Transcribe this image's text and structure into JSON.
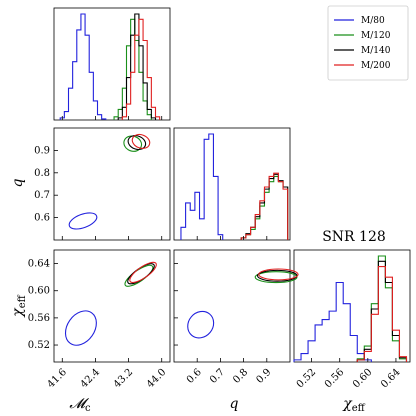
{
  "chart_data": {
    "type": "corner",
    "title": "SNR 128",
    "legend": {
      "placement": "top-right",
      "entries": [
        {
          "label": "M/80",
          "color": "#2222dd"
        },
        {
          "label": "M/120",
          "color": "#1a8f1a"
        },
        {
          "label": "M/140",
          "color": "#000000"
        },
        {
          "label": "M/200",
          "color": "#e02020"
        }
      ]
    },
    "parameters": [
      {
        "label": "𝓜",
        "subscript": "c",
        "range": [
          41.4,
          44.2
        ],
        "ticks": [
          41.6,
          42.4,
          43.2,
          44.0
        ],
        "tick_labels": [
          "41.6",
          "42.4",
          "43.2",
          "44.0"
        ]
      },
      {
        "label": "q",
        "subscript": "",
        "range": [
          0.5,
          1.0
        ],
        "ticks": [
          0.6,
          0.7,
          0.8,
          0.9
        ],
        "tick_labels": [
          "0.6",
          "0.7",
          "0.8",
          "0.9"
        ]
      },
      {
        "label": "χ",
        "subscript": "eff",
        "range": [
          0.495,
          0.66
        ],
        "ticks": [
          0.52,
          0.56,
          0.6,
          0.64
        ],
        "tick_labels": [
          "0.52",
          "0.56",
          "0.60",
          "0.64"
        ]
      }
    ],
    "marginals": [
      {
        "param": 0,
        "series": [
          {
            "name": "M/80",
            "bins": [
              [
                41.6,
                0.02
              ],
              [
                41.7,
                0.08
              ],
              [
                41.8,
                0.3
              ],
              [
                41.9,
                0.55
              ],
              [
                42.0,
                0.85
              ],
              [
                42.1,
                1.0
              ],
              [
                42.2,
                0.8
              ],
              [
                42.3,
                0.45
              ],
              [
                42.4,
                0.18
              ],
              [
                42.5,
                0.05
              ],
              [
                42.6,
                0.01
              ]
            ]
          },
          {
            "name": "M/120",
            "bins": [
              [
                42.9,
                0.03
              ],
              [
                43.0,
                0.1
              ],
              [
                43.1,
                0.3
              ],
              [
                43.2,
                0.7
              ],
              [
                43.3,
                0.95
              ],
              [
                43.4,
                0.75
              ],
              [
                43.5,
                0.45
              ],
              [
                43.6,
                0.18
              ],
              [
                43.7,
                0.05
              ]
            ]
          },
          {
            "name": "M/140",
            "bins": [
              [
                43.0,
                0.02
              ],
              [
                43.1,
                0.12
              ],
              [
                43.2,
                0.4
              ],
              [
                43.3,
                0.8
              ],
              [
                43.4,
                1.0
              ],
              [
                43.5,
                0.7
              ],
              [
                43.6,
                0.35
              ],
              [
                43.7,
                0.1
              ],
              [
                43.8,
                0.02
              ]
            ]
          },
          {
            "name": "M/200",
            "bins": [
              [
                43.1,
                0.03
              ],
              [
                43.2,
                0.15
              ],
              [
                43.3,
                0.45
              ],
              [
                43.4,
                0.8
              ],
              [
                43.5,
                0.95
              ],
              [
                43.6,
                0.75
              ],
              [
                43.7,
                0.4
              ],
              [
                43.8,
                0.12
              ],
              [
                43.9,
                0.03
              ]
            ]
          }
        ]
      },
      {
        "param": 1,
        "series": [
          {
            "name": "M/80",
            "bins": [
              [
                0.54,
                0.12
              ],
              [
                0.56,
                0.35
              ],
              [
                0.58,
                0.28
              ],
              [
                0.6,
                0.45
              ],
              [
                0.62,
                0.2
              ],
              [
                0.64,
                0.95
              ],
              [
                0.66,
                1.0
              ],
              [
                0.68,
                0.6
              ],
              [
                0.7,
                0.05
              ]
            ]
          },
          {
            "name": "M/120",
            "bins": [
              [
                0.8,
                0.02
              ],
              [
                0.82,
                0.05
              ],
              [
                0.84,
                0.1
              ],
              [
                0.86,
                0.2
              ],
              [
                0.88,
                0.32
              ],
              [
                0.9,
                0.45
              ],
              [
                0.92,
                0.55
              ],
              [
                0.94,
                0.6
              ],
              [
                0.96,
                0.55
              ],
              [
                0.98,
                0.5
              ]
            ]
          },
          {
            "name": "M/140",
            "bins": [
              [
                0.8,
                0.02
              ],
              [
                0.82,
                0.06
              ],
              [
                0.84,
                0.12
              ],
              [
                0.86,
                0.22
              ],
              [
                0.88,
                0.35
              ],
              [
                0.9,
                0.48
              ],
              [
                0.92,
                0.58
              ],
              [
                0.94,
                0.62
              ],
              [
                0.96,
                0.56
              ],
              [
                0.98,
                0.5
              ]
            ]
          },
          {
            "name": "M/200",
            "bins": [
              [
                0.8,
                0.02
              ],
              [
                0.82,
                0.05
              ],
              [
                0.84,
                0.12
              ],
              [
                0.86,
                0.24
              ],
              [
                0.88,
                0.37
              ],
              [
                0.9,
                0.5
              ],
              [
                0.92,
                0.6
              ],
              [
                0.94,
                0.63
              ],
              [
                0.96,
                0.55
              ],
              [
                0.98,
                0.48
              ]
            ]
          }
        ]
      },
      {
        "param": 2,
        "series": [
          {
            "name": "M/80",
            "bins": [
              [
                0.5,
                0.02
              ],
              [
                0.51,
                0.08
              ],
              [
                0.52,
                0.2
              ],
              [
                0.53,
                0.35
              ],
              [
                0.54,
                0.4
              ],
              [
                0.55,
                0.48
              ],
              [
                0.56,
                0.75
              ],
              [
                0.57,
                0.55
              ],
              [
                0.58,
                0.25
              ],
              [
                0.59,
                0.08
              ],
              [
                0.6,
                0.02
              ]
            ]
          },
          {
            "name": "M/120",
            "bins": [
              [
                0.59,
                0.03
              ],
              [
                0.6,
                0.15
              ],
              [
                0.61,
                0.55
              ],
              [
                0.62,
                1.0
              ],
              [
                0.63,
                0.7
              ],
              [
                0.64,
                0.2
              ],
              [
                0.65,
                0.03
              ]
            ]
          },
          {
            "name": "M/140",
            "bins": [
              [
                0.59,
                0.02
              ],
              [
                0.6,
                0.12
              ],
              [
                0.61,
                0.5
              ],
              [
                0.62,
                0.95
              ],
              [
                0.63,
                0.75
              ],
              [
                0.64,
                0.25
              ],
              [
                0.65,
                0.04
              ]
            ]
          },
          {
            "name": "M/200",
            "bins": [
              [
                0.59,
                0.02
              ],
              [
                0.6,
                0.1
              ],
              [
                0.61,
                0.45
              ],
              [
                0.62,
                0.9
              ],
              [
                0.63,
                0.8
              ],
              [
                0.64,
                0.3
              ],
              [
                0.65,
                0.05
              ]
            ]
          }
        ]
      }
    ],
    "contours": [
      {
        "x_param": 0,
        "y_param": 1,
        "series": [
          {
            "name": "M/80",
            "levels": [
              {
                "center": [
                  42.1,
                  0.585
                ],
                "rx": 0.35,
                "ry": 0.03,
                "rot": 20
              }
            ]
          },
          {
            "name": "M/120",
            "levels": [
              {
                "center": [
                  43.3,
                  0.93
                ],
                "rx": 0.18,
                "ry": 0.04,
                "rot": 70
              }
            ]
          },
          {
            "name": "M/140",
            "levels": [
              {
                "center": [
                  43.4,
                  0.935
                ],
                "rx": 0.16,
                "ry": 0.04,
                "rot": 70
              }
            ]
          },
          {
            "name": "M/200",
            "levels": [
              {
                "center": [
                  43.5,
                  0.94
                ],
                "rx": 0.16,
                "ry": 0.04,
                "rot": 70
              }
            ]
          }
        ]
      },
      {
        "x_param": 0,
        "y_param": 2,
        "series": [
          {
            "name": "M/80",
            "levels": [
              {
                "center": [
                  42.05,
                  0.545
                ],
                "rx": 0.45,
                "ry": 0.02,
                "rot": 55
              }
            ]
          },
          {
            "name": "M/120",
            "levels": [
              {
                "center": [
                  43.45,
                  0.622
                ],
                "rx": 0.4,
                "ry": 0.008,
                "rot": 35
              }
            ]
          },
          {
            "name": "M/140",
            "levels": [
              {
                "center": [
                  43.5,
                  0.625
                ],
                "rx": 0.38,
                "ry": 0.008,
                "rot": 35
              }
            ]
          },
          {
            "name": "M/200",
            "levels": [
              {
                "center": [
                  43.55,
                  0.627
                ],
                "rx": 0.38,
                "ry": 0.008,
                "rot": 35
              }
            ]
          }
        ]
      },
      {
        "x_param": 1,
        "y_param": 2,
        "series": [
          {
            "name": "M/80",
            "levels": [
              {
                "center": [
                  0.615,
                  0.55
                ],
                "rx": 0.06,
                "ry": 0.018,
                "rot": 50
              }
            ]
          },
          {
            "name": "M/120",
            "levels": [
              {
                "center": [
                  0.94,
                  0.62
                ],
                "rx": 0.09,
                "ry": 0.008,
                "rot": 0
              }
            ]
          },
          {
            "name": "M/140",
            "levels": [
              {
                "center": [
                  0.945,
                  0.622
                ],
                "rx": 0.085,
                "ry": 0.008,
                "rot": 0
              }
            ]
          },
          {
            "name": "M/200",
            "levels": [
              {
                "center": [
                  0.95,
                  0.624
                ],
                "rx": 0.085,
                "ry": 0.008,
                "rot": 0
              }
            ]
          }
        ]
      }
    ]
  }
}
